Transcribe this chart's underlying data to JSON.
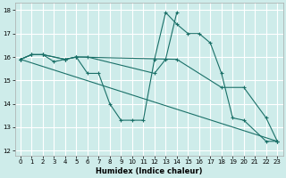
{
  "xlabel": "Humidex (Indice chaleur)",
  "bg_color": "#ceecea",
  "line_color": "#1a7068",
  "grid_color": "#ffffff",
  "xlim": [
    -0.5,
    23.5
  ],
  "ylim": [
    11.8,
    18.3
  ],
  "xticks": [
    0,
    1,
    2,
    3,
    4,
    5,
    6,
    7,
    8,
    9,
    10,
    11,
    12,
    13,
    14,
    15,
    16,
    17,
    18,
    19,
    20,
    21,
    22,
    23
  ],
  "yticks": [
    12,
    13,
    14,
    15,
    16,
    17,
    18
  ],
  "lines": [
    {
      "x": [
        0,
        1,
        2,
        3,
        4,
        5,
        6,
        7,
        8,
        9,
        10,
        11,
        12,
        13,
        14,
        15,
        16,
        17,
        18,
        19,
        20,
        22,
        23
      ],
      "y": [
        15.9,
        16.1,
        16.1,
        15.8,
        15.9,
        16.0,
        15.3,
        15.3,
        14.0,
        13.3,
        13.3,
        13.3,
        15.9,
        17.9,
        17.4,
        17.0,
        17.0,
        16.6,
        15.3,
        13.4,
        13.3,
        12.4,
        12.4
      ]
    },
    {
      "x": [
        0,
        1,
        2,
        4,
        5,
        6,
        12,
        13,
        14
      ],
      "y": [
        15.9,
        16.1,
        16.1,
        15.9,
        16.0,
        16.0,
        15.3,
        15.9,
        17.9
      ]
    },
    {
      "x": [
        0,
        23
      ],
      "y": [
        15.9,
        12.4
      ]
    },
    {
      "x": [
        0,
        1,
        2,
        4,
        5,
        14,
        18,
        20,
        22,
        23
      ],
      "y": [
        15.9,
        16.1,
        16.1,
        15.9,
        16.0,
        15.9,
        14.7,
        14.7,
        13.4,
        12.4
      ]
    }
  ]
}
